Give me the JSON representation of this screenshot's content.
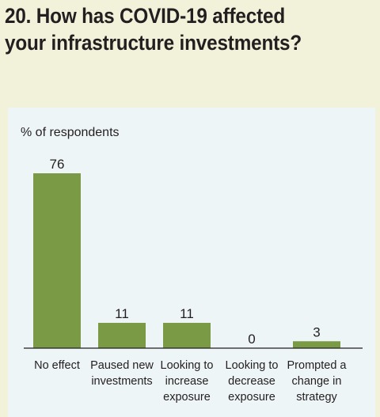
{
  "title_lines": [
    "20. How has COVID-19 affected",
    "your infrastructure investments?"
  ],
  "chart_data": {
    "type": "bar",
    "ylabel": "% of respondents",
    "categories": [
      [
        "No effect"
      ],
      [
        "Paused new",
        "investments"
      ],
      [
        "Looking to",
        "increase",
        "exposure"
      ],
      [
        "Looking to",
        "decrease",
        "exposure"
      ],
      [
        "Prompted a",
        "change in",
        "strategy"
      ]
    ],
    "values": [
      76,
      11,
      11,
      0,
      3
    ],
    "ylim": [
      0,
      80
    ],
    "grid": false,
    "bar_color": "#7a9a46"
  },
  "colors": {
    "background": "#f2f2da",
    "panel": "#eef5f7",
    "text": "#231f20",
    "axis": "#231f20"
  }
}
